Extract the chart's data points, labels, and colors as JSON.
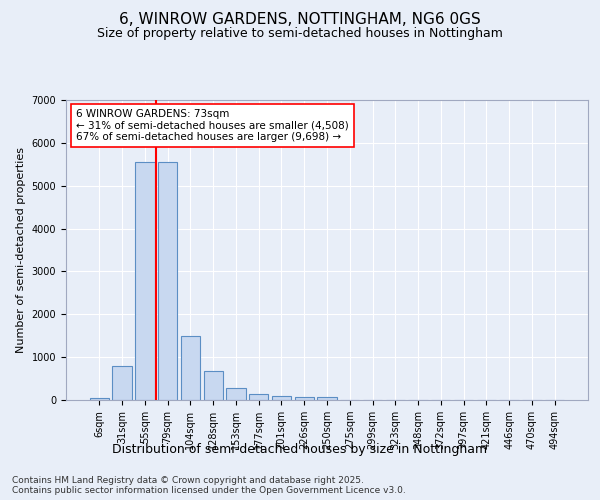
{
  "title": "6, WINROW GARDENS, NOTTINGHAM, NG6 0GS",
  "subtitle": "Size of property relative to semi-detached houses in Nottingham",
  "xlabel": "Distribution of semi-detached houses by size in Nottingham",
  "ylabel": "Number of semi-detached properties",
  "categories": [
    "6sqm",
    "31sqm",
    "55sqm",
    "79sqm",
    "104sqm",
    "128sqm",
    "153sqm",
    "177sqm",
    "201sqm",
    "226sqm",
    "250sqm",
    "275sqm",
    "299sqm",
    "323sqm",
    "348sqm",
    "372sqm",
    "397sqm",
    "421sqm",
    "446sqm",
    "470sqm",
    "494sqm"
  ],
  "values": [
    50,
    800,
    5550,
    5550,
    1500,
    680,
    270,
    145,
    100,
    75,
    75,
    0,
    0,
    0,
    0,
    0,
    0,
    0,
    0,
    0,
    0
  ],
  "bar_color": "#c8d8f0",
  "bar_edge_color": "#5b8ec4",
  "vline_color": "red",
  "vline_x": 2.5,
  "annotation_text": "6 WINROW GARDENS: 73sqm\n← 31% of semi-detached houses are smaller (4,508)\n67% of semi-detached houses are larger (9,698) →",
  "annotation_box_color": "white",
  "annotation_box_edge": "red",
  "ylim": [
    0,
    7000
  ],
  "background_color": "#e8eef8",
  "grid_color": "white",
  "footer": "Contains HM Land Registry data © Crown copyright and database right 2025.\nContains public sector information licensed under the Open Government Licence v3.0.",
  "title_fontsize": 11,
  "subtitle_fontsize": 9,
  "ylabel_fontsize": 8,
  "xlabel_fontsize": 9,
  "tick_fontsize": 7,
  "annotation_fontsize": 7.5,
  "footer_fontsize": 6.5
}
